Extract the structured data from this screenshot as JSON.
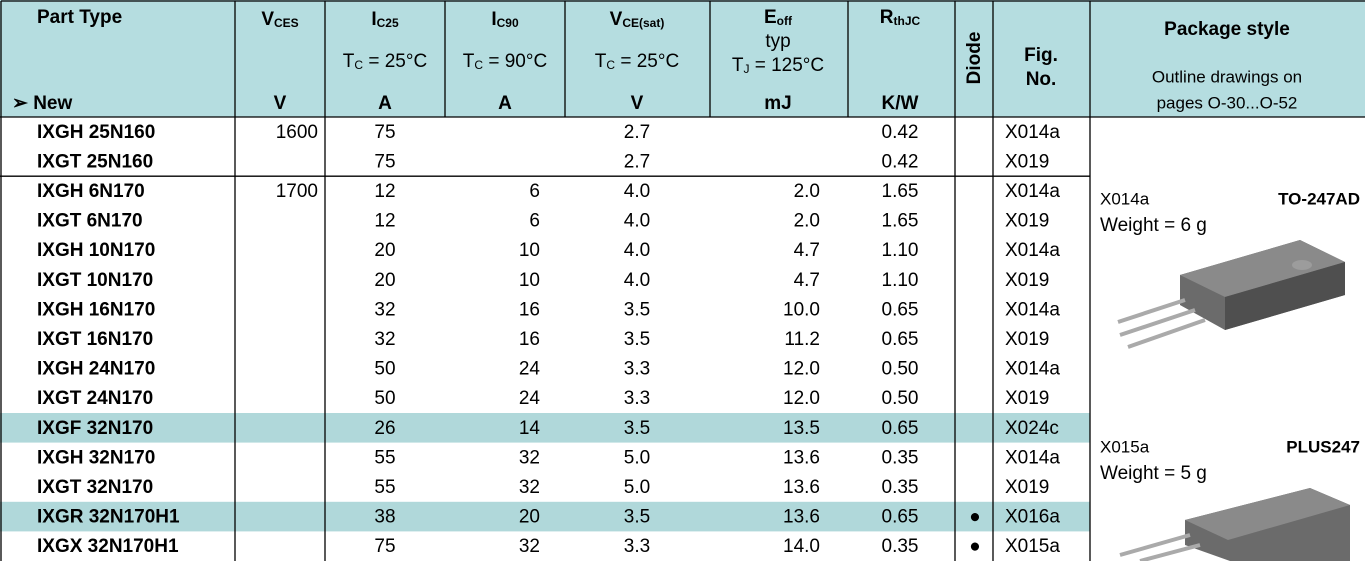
{
  "header": {
    "columns": [
      {
        "main": "Part Type",
        "unit": "➢ New"
      },
      {
        "main": "V",
        "sub": "CES",
        "unit": "V"
      },
      {
        "main": "I",
        "sub": "C25",
        "cond": {
          "main": "T",
          "sub": "C",
          "rest": " = 25°C"
        },
        "unit": "A"
      },
      {
        "main": "I",
        "sub": "C90",
        "cond": {
          "main": "T",
          "sub": "C",
          "rest": " = 90°C"
        },
        "unit": "A"
      },
      {
        "main": "V",
        "sub": "CE(sat)",
        "cond": {
          "main": "T",
          "sub": "C",
          "rest": " = 25°C"
        },
        "unit": "V"
      },
      {
        "main": "E",
        "sub": "off",
        "note": "typ",
        "cond": {
          "main": "T",
          "sub": "J",
          "rest": " = 125°C"
        },
        "unit": "mJ"
      },
      {
        "main": "R",
        "sub": "thJC",
        "unit": "K/W"
      },
      {
        "main": "Diode"
      },
      {
        "main": "Fig.",
        "line2": "No."
      }
    ],
    "package": {
      "title": "Package style",
      "line1": "Outline drawings on",
      "line2": "pages O-30...O-52"
    }
  },
  "table": {
    "groups": [
      {
        "rows": [
          {
            "cells": [
              "IXGH 25N160",
              "1600",
              "75",
              null,
              "2.7",
              null,
              "0.42",
              null,
              "X014a"
            ]
          },
          {
            "cells": [
              "IXGT 25N160",
              null,
              "75",
              null,
              "2.7",
              null,
              "0.42",
              null,
              "X019"
            ]
          }
        ]
      },
      {
        "rows": [
          {
            "cells": [
              "IXGH 6N170",
              "1700",
              "12",
              "6",
              "4.0",
              "2.0",
              "1.65",
              null,
              "X014a"
            ]
          },
          {
            "cells": [
              "IXGT 6N170",
              null,
              "12",
              "6",
              "4.0",
              "2.0",
              "1.65",
              null,
              "X019"
            ]
          },
          {
            "cells": [
              "IXGH 10N170",
              null,
              "20",
              "10",
              "4.0",
              "4.7",
              "1.10",
              null,
              "X014a"
            ]
          },
          {
            "cells": [
              "IXGT 10N170",
              null,
              "20",
              "10",
              "4.0",
              "4.7",
              "1.10",
              null,
              "X019"
            ]
          },
          {
            "cells": [
              "IXGH 16N170",
              null,
              "32",
              "16",
              "3.5",
              "10.0",
              "0.65",
              null,
              "X014a"
            ]
          },
          {
            "cells": [
              "IXGT 16N170",
              null,
              "32",
              "16",
              "3.5",
              "11.2",
              "0.65",
              null,
              "X019"
            ]
          },
          {
            "cells": [
              "IXGH 24N170",
              null,
              "50",
              "24",
              "3.3",
              "12.0",
              "0.50",
              null,
              "X014a"
            ]
          },
          {
            "cells": [
              "IXGT 24N170",
              null,
              "50",
              "24",
              "3.3",
              "12.0",
              "0.50",
              null,
              "X019"
            ]
          },
          {
            "cells": [
              "IXGF 32N170",
              null,
              "26",
              "14",
              "3.5",
              "13.5",
              "0.65",
              null,
              "X024c"
            ],
            "highlight": true
          },
          {
            "cells": [
              "IXGH 32N170",
              null,
              "55",
              "32",
              "5.0",
              "13.6",
              "0.35",
              null,
              "X014a"
            ]
          },
          {
            "cells": [
              "IXGT 32N170",
              null,
              "55",
              "32",
              "5.0",
              "13.6",
              "0.35",
              null,
              "X019"
            ]
          },
          {
            "cells": [
              "IXGR 32N170H1",
              null,
              "38",
              "20",
              "3.5",
              "13.6",
              "0.65",
              "●",
              "X016a"
            ],
            "highlight": true
          },
          {
            "cells": [
              "IXGX 32N170H1",
              null,
              "75",
              "32",
              "3.3",
              "14.0",
              "0.35",
              "●",
              "X015a"
            ]
          }
        ]
      }
    ]
  },
  "packages": [
    {
      "code": "X014a",
      "name": "TO-247AD",
      "weight": "Weight = 6 g"
    },
    {
      "code": "X015a",
      "name": "PLUS247",
      "weight": "Weight = 5 g"
    }
  ]
}
